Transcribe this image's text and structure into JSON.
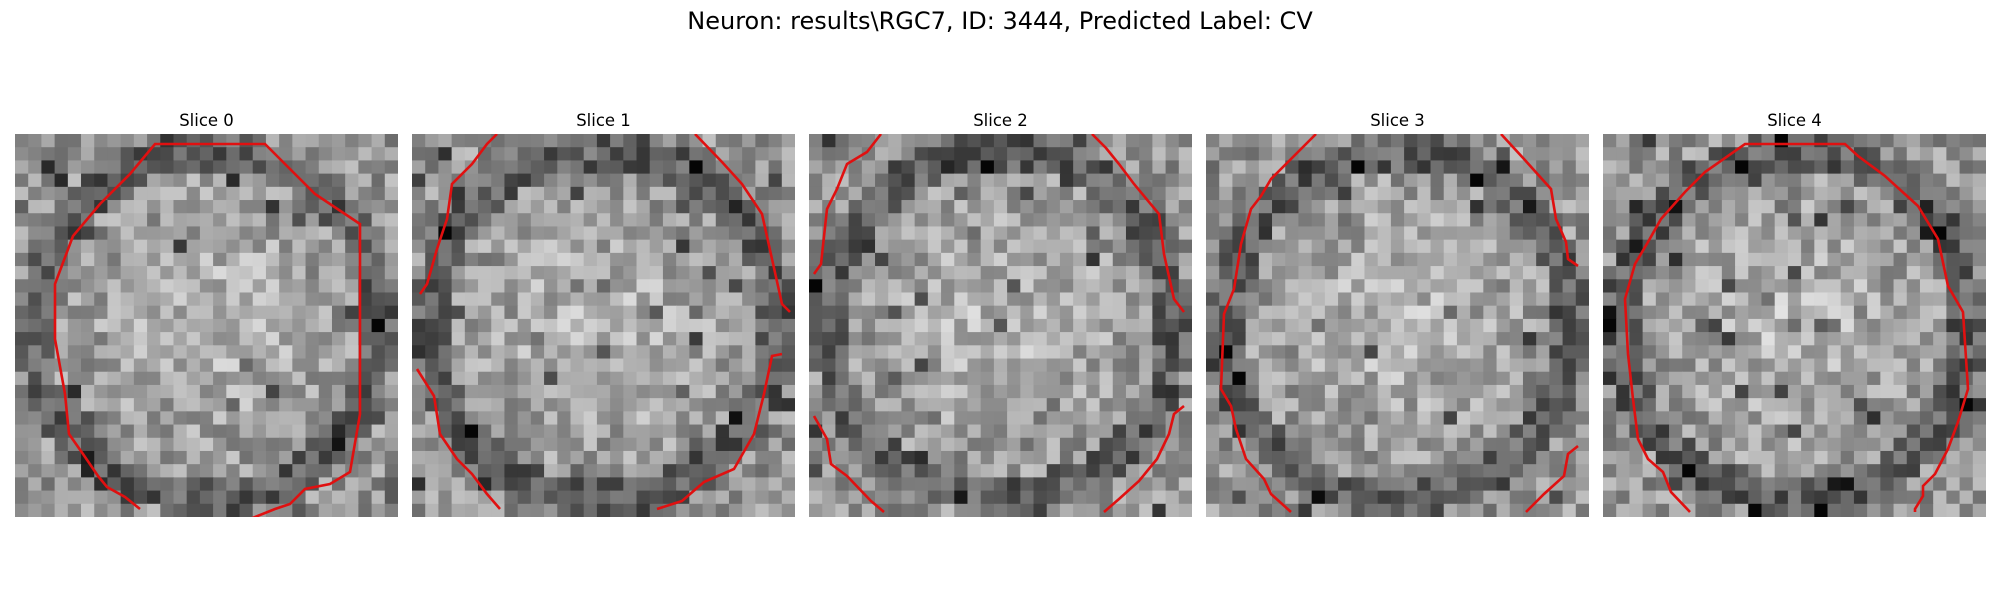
{
  "figure": {
    "suptitle": "Neuron: results\\RGC7, ID: 3444, Predicted Label: CV",
    "contour_color": "#e01010",
    "slices": [
      {
        "title": "Slice 0",
        "seed": 11,
        "contour": "outline"
      },
      {
        "title": "Slice 1",
        "seed": 23,
        "contour": "cut"
      },
      {
        "title": "Slice 2",
        "seed": 37,
        "contour": "cut"
      },
      {
        "title": "Slice 3",
        "seed": 51,
        "contour": "cut"
      },
      {
        "title": "Slice 4",
        "seed": 67,
        "contour": "outline"
      }
    ]
  }
}
